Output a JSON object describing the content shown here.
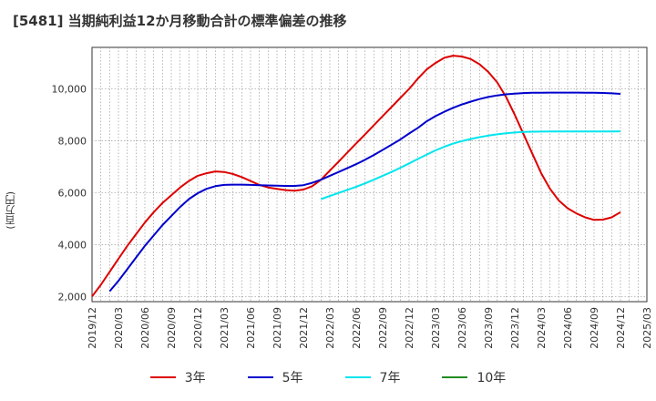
{
  "title": "[5481]  当期純利益12か月移動合計の標準偏差の推移",
  "chart_data": {
    "type": "line",
    "ylabel": "(百万円)",
    "xlabel": "",
    "ylim": [
      1800,
      11600
    ],
    "yticks": [
      2000,
      4000,
      6000,
      8000,
      10000
    ],
    "ytick_labels": [
      "2,000",
      "4,000",
      "6,000",
      "8,000",
      "10,000"
    ],
    "xticks": [
      "2019/12",
      "2020/03",
      "2020/06",
      "2020/09",
      "2020/12",
      "2021/03",
      "2021/06",
      "2021/09",
      "2021/12",
      "2022/03",
      "2022/06",
      "2022/09",
      "2022/12",
      "2023/03",
      "2023/06",
      "2023/09",
      "2023/12",
      "2024/03",
      "2024/06",
      "2024/09",
      "2024/12",
      "2025/03"
    ],
    "grid": true,
    "legend_position": "bottom",
    "series": [
      {
        "name": "3年",
        "color": "#dd0000",
        "points": [
          [
            "2019/12",
            2000
          ],
          [
            "2020/01",
            2450
          ],
          [
            "2020/02",
            2950
          ],
          [
            "2020/03",
            3450
          ],
          [
            "2020/04",
            3950
          ],
          [
            "2020/05",
            4400
          ],
          [
            "2020/06",
            4850
          ],
          [
            "2020/07",
            5250
          ],
          [
            "2020/08",
            5600
          ],
          [
            "2020/09",
            5900
          ],
          [
            "2020/10",
            6200
          ],
          [
            "2020/11",
            6450
          ],
          [
            "2020/12",
            6650
          ],
          [
            "2021/01",
            6750
          ],
          [
            "2021/02",
            6820
          ],
          [
            "2021/03",
            6800
          ],
          [
            "2021/04",
            6720
          ],
          [
            "2021/05",
            6600
          ],
          [
            "2021/06",
            6450
          ],
          [
            "2021/07",
            6300
          ],
          [
            "2021/08",
            6200
          ],
          [
            "2021/09",
            6150
          ],
          [
            "2021/10",
            6100
          ],
          [
            "2021/11",
            6080
          ],
          [
            "2021/12",
            6120
          ],
          [
            "2022/01",
            6250
          ],
          [
            "2022/02",
            6500
          ],
          [
            "2022/03",
            6850
          ],
          [
            "2022/04",
            7200
          ],
          [
            "2022/05",
            7550
          ],
          [
            "2022/06",
            7900
          ],
          [
            "2022/07",
            8250
          ],
          [
            "2022/08",
            8600
          ],
          [
            "2022/09",
            8950
          ],
          [
            "2022/10",
            9300
          ],
          [
            "2022/11",
            9650
          ],
          [
            "2022/12",
            10000
          ],
          [
            "2023/01",
            10400
          ],
          [
            "2023/02",
            10750
          ],
          [
            "2023/03",
            11000
          ],
          [
            "2023/04",
            11200
          ],
          [
            "2023/05",
            11280
          ],
          [
            "2023/06",
            11250
          ],
          [
            "2023/07",
            11150
          ],
          [
            "2023/08",
            10950
          ],
          [
            "2023/09",
            10650
          ],
          [
            "2023/10",
            10250
          ],
          [
            "2023/11",
            9700
          ],
          [
            "2023/12",
            9000
          ],
          [
            "2024/01",
            8250
          ],
          [
            "2024/02",
            7500
          ],
          [
            "2024/03",
            6750
          ],
          [
            "2024/04",
            6150
          ],
          [
            "2024/05",
            5700
          ],
          [
            "2024/06",
            5400
          ],
          [
            "2024/07",
            5200
          ],
          [
            "2024/08",
            5050
          ],
          [
            "2024/09",
            4950
          ],
          [
            "2024/10",
            4960
          ],
          [
            "2024/11",
            5050
          ],
          [
            "2024/12",
            5250
          ]
        ]
      },
      {
        "name": "5年",
        "color": "#0000cc",
        "points": [
          [
            "2020/02",
            2200
          ],
          [
            "2020/03",
            2600
          ],
          [
            "2020/04",
            3050
          ],
          [
            "2020/05",
            3500
          ],
          [
            "2020/06",
            3950
          ],
          [
            "2020/07",
            4350
          ],
          [
            "2020/08",
            4750
          ],
          [
            "2020/09",
            5100
          ],
          [
            "2020/10",
            5450
          ],
          [
            "2020/11",
            5750
          ],
          [
            "2020/12",
            5980
          ],
          [
            "2021/01",
            6150
          ],
          [
            "2021/02",
            6250
          ],
          [
            "2021/03",
            6300
          ],
          [
            "2021/04",
            6310
          ],
          [
            "2021/05",
            6310
          ],
          [
            "2021/06",
            6300
          ],
          [
            "2021/07",
            6290
          ],
          [
            "2021/08",
            6280
          ],
          [
            "2021/09",
            6270
          ],
          [
            "2021/10",
            6260
          ],
          [
            "2021/11",
            6260
          ],
          [
            "2021/12",
            6290
          ],
          [
            "2022/01",
            6380
          ],
          [
            "2022/02",
            6500
          ],
          [
            "2022/03",
            6650
          ],
          [
            "2022/04",
            6800
          ],
          [
            "2022/05",
            6950
          ],
          [
            "2022/06",
            7100
          ],
          [
            "2022/07",
            7270
          ],
          [
            "2022/08",
            7450
          ],
          [
            "2022/09",
            7650
          ],
          [
            "2022/10",
            7850
          ],
          [
            "2022/11",
            8050
          ],
          [
            "2022/12",
            8280
          ],
          [
            "2023/01",
            8500
          ],
          [
            "2023/02",
            8750
          ],
          [
            "2023/03",
            8950
          ],
          [
            "2023/04",
            9120
          ],
          [
            "2023/05",
            9270
          ],
          [
            "2023/06",
            9400
          ],
          [
            "2023/07",
            9510
          ],
          [
            "2023/08",
            9610
          ],
          [
            "2023/09",
            9690
          ],
          [
            "2023/10",
            9750
          ],
          [
            "2023/11",
            9790
          ],
          [
            "2023/12",
            9820
          ],
          [
            "2024/01",
            9840
          ],
          [
            "2024/02",
            9850
          ],
          [
            "2024/03",
            9855
          ],
          [
            "2024/04",
            9857
          ],
          [
            "2024/05",
            9858
          ],
          [
            "2024/06",
            9858
          ],
          [
            "2024/07",
            9857
          ],
          [
            "2024/08",
            9855
          ],
          [
            "2024/09",
            9852
          ],
          [
            "2024/10",
            9845
          ],
          [
            "2024/11",
            9830
          ],
          [
            "2024/12",
            9810
          ]
        ]
      },
      {
        "name": "7年",
        "color": "#00e5ee",
        "points": [
          [
            "2022/02",
            5750
          ],
          [
            "2022/03",
            5870
          ],
          [
            "2022/04",
            5990
          ],
          [
            "2022/05",
            6110
          ],
          [
            "2022/06",
            6230
          ],
          [
            "2022/07",
            6360
          ],
          [
            "2022/08",
            6500
          ],
          [
            "2022/09",
            6650
          ],
          [
            "2022/10",
            6800
          ],
          [
            "2022/11",
            6960
          ],
          [
            "2022/12",
            7130
          ],
          [
            "2023/01",
            7300
          ],
          [
            "2023/02",
            7470
          ],
          [
            "2023/03",
            7630
          ],
          [
            "2023/04",
            7770
          ],
          [
            "2023/05",
            7890
          ],
          [
            "2023/06",
            7990
          ],
          [
            "2023/07",
            8070
          ],
          [
            "2023/08",
            8140
          ],
          [
            "2023/09",
            8200
          ],
          [
            "2023/10",
            8250
          ],
          [
            "2023/11",
            8290
          ],
          [
            "2023/12",
            8320
          ],
          [
            "2024/01",
            8340
          ],
          [
            "2024/02",
            8350
          ],
          [
            "2024/03",
            8355
          ],
          [
            "2024/04",
            8358
          ],
          [
            "2024/05",
            8360
          ],
          [
            "2024/06",
            8360
          ],
          [
            "2024/07",
            8360
          ],
          [
            "2024/08",
            8360
          ],
          [
            "2024/09",
            8360
          ],
          [
            "2024/10",
            8360
          ],
          [
            "2024/11",
            8362
          ],
          [
            "2024/12",
            8365
          ]
        ]
      },
      {
        "name": "10年",
        "color": "#228b22",
        "points": []
      }
    ]
  }
}
